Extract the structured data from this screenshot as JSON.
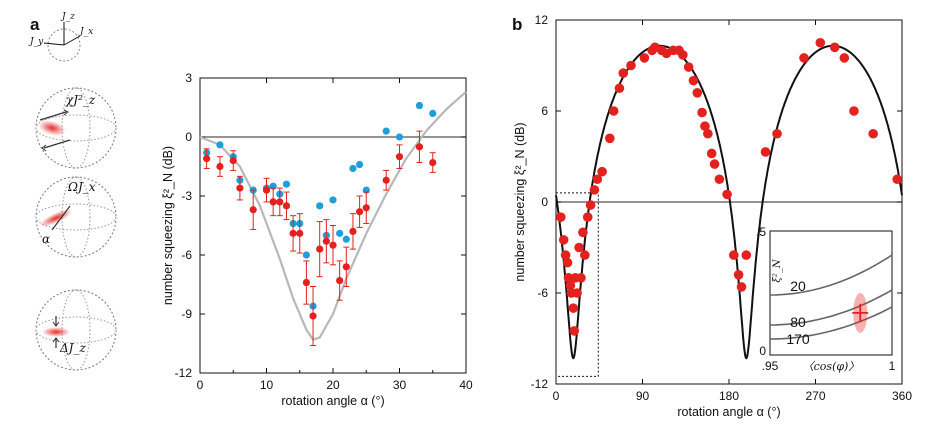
{
  "panel_labels": {
    "a": "a",
    "b": "b"
  },
  "sphere_labels": {
    "axes": [
      "J_z",
      "J_y",
      "J_x"
    ],
    "s1": "χJ²_z",
    "s2": "ΩJ_x",
    "s2_angle": "α",
    "s3": "ΔJ_z"
  },
  "colors": {
    "red": "#e3211f",
    "blue": "#1e9fdc",
    "gray_curve": "#b8b8b8",
    "black_curve": "#111111",
    "zero_line": "#555555"
  },
  "inset_label": "〈cos(φ)〉",
  "chart_data": [
    {
      "type": "scatter",
      "panel": "a",
      "xlabel": "rotation angle α (°)",
      "ylabel": "number squeezing ξ²_N (dB)",
      "xlim": [
        0,
        40
      ],
      "ylim": [
        -12,
        3
      ],
      "xticks": [
        "0",
        "10",
        "20",
        "30",
        "40"
      ],
      "yticks": [
        "3",
        "0",
        "-3",
        "-6",
        "-9",
        "-12"
      ],
      "series": [
        {
          "color": "blue",
          "x": [
            1,
            3,
            5,
            6,
            8,
            10,
            11,
            12,
            13,
            14,
            15,
            16,
            17,
            18,
            19,
            20,
            21,
            22,
            23,
            24,
            25,
            28,
            30,
            33,
            35
          ],
          "y": [
            -0.8,
            -0.4,
            -1.0,
            -2.2,
            -2.7,
            -2.6,
            -2.5,
            -2.9,
            -2.4,
            -4.4,
            -4.4,
            -6.0,
            -8.6,
            -3.5,
            -5.0,
            -3.2,
            -4.9,
            -5.2,
            -1.6,
            -1.4,
            -2.7,
            0.3,
            0.0,
            1.6,
            1.2
          ]
        },
        {
          "color": "red",
          "x": [
            1,
            3,
            5,
            6,
            8,
            10,
            11,
            12,
            13,
            14,
            15,
            16,
            17,
            18,
            19,
            20,
            21,
            22,
            23,
            24,
            25,
            28,
            30,
            33,
            35
          ],
          "y": [
            -1.1,
            -1.5,
            -1.2,
            -2.6,
            -3.7,
            -2.7,
            -3.3,
            -3.3,
            -3.5,
            -4.9,
            -4.9,
            -7.4,
            -9.1,
            -5.7,
            -5.3,
            -5.5,
            -7.3,
            -6.6,
            -4.8,
            -3.8,
            -3.6,
            -2.2,
            -1.0,
            -0.5,
            -1.3
          ],
          "err": [
            0.5,
            0.5,
            0.5,
            0.6,
            1.0,
            0.6,
            0.7,
            0.7,
            0.7,
            0.9,
            1.0,
            1.1,
            1.5,
            1.4,
            1.1,
            1.0,
            1.0,
            1.0,
            0.9,
            0.8,
            0.8,
            0.5,
            0.6,
            0.8,
            0.5
          ]
        }
      ],
      "theory_curve": {
        "color": "gray_curve",
        "x": [
          0,
          3,
          6,
          9,
          12,
          14,
          16,
          17,
          18,
          20,
          22,
          25,
          28,
          31,
          34,
          37,
          40
        ],
        "y": [
          0,
          -0.4,
          -1.5,
          -3.5,
          -6.2,
          -8.2,
          -9.8,
          -10.3,
          -10.2,
          -9.0,
          -7.2,
          -4.9,
          -2.9,
          -1.1,
          0.3,
          1.4,
          2.3
        ]
      }
    },
    {
      "type": "scatter",
      "panel": "b",
      "xlabel": "rotation angle α (°)",
      "ylabel": "number squeezing ξ²_N (dB)",
      "xlim": [
        0,
        360
      ],
      "ylim": [
        -12,
        12
      ],
      "xticks": [
        "0",
        "90",
        "180",
        "270",
        "360"
      ],
      "yticks": [
        "12",
        "6",
        "0",
        "-6",
        "-12"
      ],
      "points": {
        "color": "red",
        "x": [
          5,
          8,
          10,
          12,
          13,
          15,
          16,
          18,
          19,
          20,
          22,
          24,
          26,
          28,
          30,
          33,
          36,
          40,
          43,
          48,
          56,
          60,
          66,
          70,
          78,
          92,
          100,
          103,
          110,
          115,
          122,
          128,
          132,
          138,
          143,
          147,
          152,
          155,
          158,
          162,
          165,
          170,
          178,
          185,
          190,
          193,
          198,
          218,
          230,
          258,
          275,
          290,
          300,
          310,
          330,
          355
        ],
        "y": [
          -1.0,
          -2.5,
          -3.5,
          -4.0,
          -5.0,
          -5.5,
          -6.0,
          -7.0,
          -8.5,
          -5.0,
          -6.0,
          -3.0,
          -5.0,
          -2.0,
          -3.5,
          -1.0,
          -0.2,
          0.8,
          1.5,
          2.0,
          4.2,
          6.0,
          7.5,
          8.5,
          9.0,
          9.5,
          10.0,
          10.2,
          10.0,
          9.8,
          10.0,
          10.0,
          9.7,
          8.9,
          8.0,
          7.2,
          5.9,
          5.0,
          4.5,
          3.2,
          2.5,
          1.5,
          0.5,
          -3.5,
          -4.8,
          -5.6,
          -3.5,
          3.3,
          4.5,
          9.5,
          10.5,
          10.2,
          9.5,
          6.0,
          4.5,
          1.5
        ]
      },
      "theory_curve": {
        "color": "black_curve",
        "form": "dB of periodic squeezing, minima at 18 and 198, maxima ~10.3 at 108 and 288",
        "min_db": -10.3,
        "max_db": 10.3
      },
      "inset": {
        "xlim_labels": [
          ".95",
          "1"
        ],
        "ylim_labels": [
          "0",
          ".5"
        ],
        "ylabel": "ξ²_N",
        "curve_labels": [
          "20",
          "80",
          "170"
        ],
        "marker": {
          "x": 0.987,
          "y": 0.17
        }
      }
    }
  ]
}
